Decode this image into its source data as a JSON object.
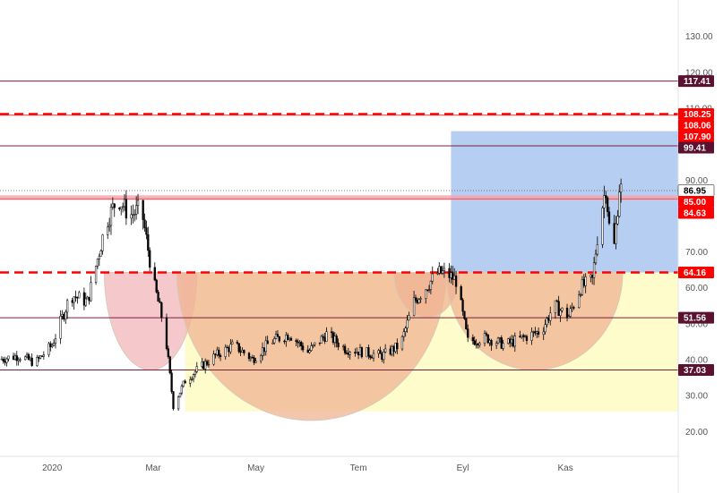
{
  "chart_data": {
    "type": "candlestick",
    "title": "",
    "xlabel": "",
    "ylabel": "",
    "ylim": [
      13,
      137
    ],
    "grid": false,
    "colors": {
      "candle": "#000000",
      "level_line": "#7a1f3d",
      "level_badge": "#5b1130",
      "red_level": "#ff0000",
      "pink_band": "#f4a6b0",
      "cup": "#efb393",
      "early_cup": "#f2b7b9",
      "target_box": "#a8c5f0",
      "base_box": "#fffccc"
    },
    "y_ticks": [
      "130.00",
      "120.00",
      "110.00",
      "90.00",
      "70.00",
      "60.00",
      "50.00",
      "40.00",
      "30.00",
      "20.00"
    ],
    "x_ticks": [
      "2020",
      "Mar",
      "May",
      "Tem",
      "Eyl",
      "Kas"
    ],
    "levels": [
      {
        "value": 117.41,
        "label": "117.41",
        "style": "solid"
      },
      {
        "value": 99.41,
        "label": "99.41",
        "style": "solid"
      },
      {
        "value": 51.56,
        "label": "51.56",
        "style": "solid"
      },
      {
        "value": 37.03,
        "label": "37.03",
        "style": "solid"
      }
    ],
    "red_levels": [
      {
        "value": 108.25,
        "label": "108.25",
        "style": "dashed"
      },
      {
        "value": 108.06,
        "label": "108.06",
        "style": "solid"
      },
      {
        "value": 107.9,
        "label": "107.90",
        "style": "solid"
      },
      {
        "value": 85.0,
        "label": "85.00",
        "style": "band"
      },
      {
        "value": 84.63,
        "label": "84.63",
        "style": "solid"
      },
      {
        "value": 64.16,
        "label": "64.16",
        "style": "dashed"
      }
    ],
    "last_price": {
      "value": 86.95,
      "label": "86.95"
    },
    "zones": {
      "target_box": {
        "from": "2020-08-25",
        "to": "2021-01-07",
        "y_low": 64.16,
        "y_high": 103.5
      },
      "base_box": {
        "from": "2020-03-20",
        "to": "2021-01-07",
        "y_low": 25.5,
        "y_high": 64.16
      }
    },
    "cups": [
      {
        "from": "2020-02-01",
        "to": "2020-03-27",
        "top": 64.16,
        "bottom": 37.0
      },
      {
        "from": "2020-03-15",
        "to": "2020-08-22",
        "top": 64.16,
        "bottom": 23.0
      },
      {
        "from": "2020-07-22",
        "to": "2020-08-30",
        "top": 64.16,
        "bottom": 51.56
      },
      {
        "from": "2020-08-22",
        "to": "2020-12-05",
        "top": 64.16,
        "bottom": 37.03
      }
    ],
    "price_path": [
      [
        "2019-12-01",
        40
      ],
      [
        "2019-12-12",
        41
      ],
      [
        "2019-12-22",
        39
      ],
      [
        "2020-01-01",
        44
      ],
      [
        "2020-01-12",
        58
      ],
      [
        "2020-01-22",
        56
      ],
      [
        "2020-02-02",
        78
      ],
      [
        "2020-02-09",
        85
      ],
      [
        "2020-02-16",
        80
      ],
      [
        "2020-02-23",
        82
      ],
      [
        "2020-03-01",
        62
      ],
      [
        "2020-03-08",
        48
      ],
      [
        "2020-03-13",
        27
      ],
      [
        "2020-03-20",
        34
      ],
      [
        "2020-03-27",
        37
      ],
      [
        "2020-04-07",
        41
      ],
      [
        "2020-04-18",
        44
      ],
      [
        "2020-04-29",
        40
      ],
      [
        "2020-05-10",
        45
      ],
      [
        "2020-05-21",
        47
      ],
      [
        "2020-06-01",
        42
      ],
      [
        "2020-06-12",
        47
      ],
      [
        "2020-06-23",
        43
      ],
      [
        "2020-07-04",
        42
      ],
      [
        "2020-07-15",
        41
      ],
      [
        "2020-07-26",
        44
      ],
      [
        "2020-08-03",
        56
      ],
      [
        "2020-08-10",
        60
      ],
      [
        "2020-08-17",
        64
      ],
      [
        "2020-08-22",
        64
      ],
      [
        "2020-08-28",
        62
      ],
      [
        "2020-09-04",
        45
      ],
      [
        "2020-09-15",
        46
      ],
      [
        "2020-09-26",
        44
      ],
      [
        "2020-10-07",
        46
      ],
      [
        "2020-10-18",
        48
      ],
      [
        "2020-10-25",
        55
      ],
      [
        "2020-11-03",
        52
      ],
      [
        "2020-11-10",
        60
      ],
      [
        "2020-11-17",
        62
      ],
      [
        "2020-11-21",
        78
      ],
      [
        "2020-11-25",
        88
      ],
      [
        "2020-11-29",
        66
      ],
      [
        "2020-12-03",
        88
      ],
      [
        "2020-12-06",
        86
      ]
    ]
  }
}
